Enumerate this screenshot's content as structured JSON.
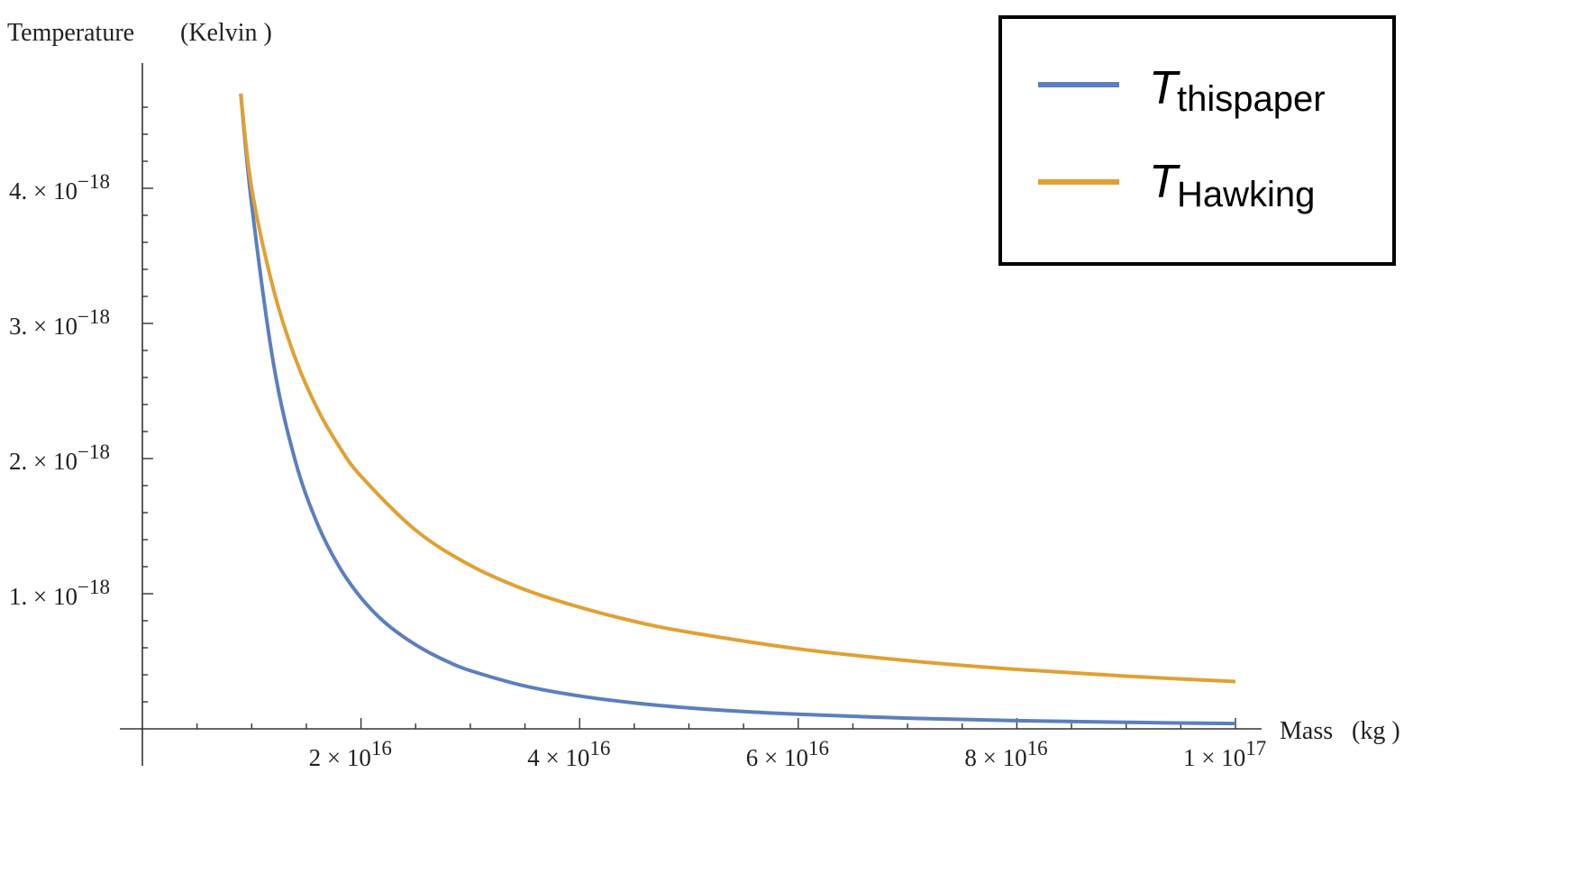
{
  "chart_data": {
    "type": "line",
    "ylabel": "Temperature",
    "ylabel_unit": "(Kelvin )",
    "xlabel": "Mass",
    "xlabel_unit": "(kg )",
    "xlim": [
      0,
      1e+17
    ],
    "ylim": [
      0,
      4.8e-18
    ],
    "x_ticks": [
      {
        "value": 2e+16,
        "mantissa": "2 × 10",
        "exp": "16"
      },
      {
        "value": 4e+16,
        "mantissa": "4 × 10",
        "exp": "16"
      },
      {
        "value": 6e+16,
        "mantissa": "6 × 10",
        "exp": "16"
      },
      {
        "value": 8e+16,
        "mantissa": "8 × 10",
        "exp": "16"
      },
      {
        "value": 1e+17,
        "mantissa": "1 × 10",
        "exp": "17"
      }
    ],
    "y_ticks": [
      {
        "value": 1e-18,
        "mantissa": "1. × 10",
        "exp": "−18"
      },
      {
        "value": 2e-18,
        "mantissa": "2. × 10",
        "exp": "−18"
      },
      {
        "value": 3e-18,
        "mantissa": "3. × 10",
        "exp": "−18"
      },
      {
        "value": 4e-18,
        "mantissa": "4. × 10",
        "exp": "−18"
      }
    ],
    "series": [
      {
        "name_main": "T",
        "name_sub": "thispaper",
        "color": "#5b7fbf",
        "x": [
          9000000000000000.0,
          1e+16,
          1.2e+16,
          1.4e+16,
          1.6e+16,
          1.8e+16,
          2e+16,
          2.2e+16,
          2.4e+16,
          2.6e+16,
          2.8e+16,
          3e+16,
          3.5e+16,
          4e+16,
          4.5e+16,
          5e+16,
          5.5e+16,
          6e+16,
          7e+16,
          8e+16,
          9e+16,
          1e+17
        ],
        "y": [
          4.7e-18,
          3.88e-18,
          2.7e-18,
          1.98e-18,
          1.52e-18,
          1.2e-18,
          9.7e-19,
          8e-19,
          6.75e-19,
          5.75e-19,
          4.95e-19,
          4.31e-19,
          3.17e-19,
          2.43e-19,
          1.92e-19,
          1.55e-19,
          1.28e-19,
          1.08e-19,
          7.9e-20,
          6.1e-20,
          4.8e-20,
          3.9e-20
        ]
      },
      {
        "name_main": "T",
        "name_sub": "Hawking",
        "color": "#e0a132",
        "x": [
          9000000000000000.0,
          1e+16,
          1.2e+16,
          1.4e+16,
          1.6e+16,
          1.8e+16,
          2e+16,
          2.5e+16,
          3e+16,
          3.5e+16,
          4e+16,
          4.5e+16,
          5e+16,
          6e+16,
          7e+16,
          8e+16,
          9e+16,
          1e+17
        ],
        "y": [
          4.7e-18,
          4e-18,
          3.25e-18,
          2.74e-18,
          2.37e-18,
          2.09e-18,
          1.87e-18,
          1.47e-18,
          1.21e-18,
          1.03e-18,
          9e-19,
          7.95e-19,
          7.15e-19,
          5.92e-19,
          5.05e-19,
          4.4e-19,
          3.9e-19,
          3.5e-19
        ]
      }
    ],
    "legend_position": "top-right",
    "grid": false
  }
}
